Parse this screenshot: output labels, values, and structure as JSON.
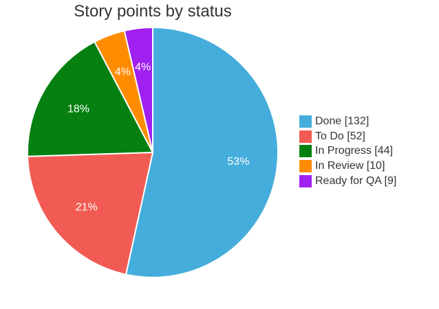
{
  "chart_data": {
    "type": "pie",
    "title": "Story points by status",
    "slices": [
      {
        "label": "Done",
        "value": 132,
        "percent_label": "53%",
        "color": "#45ADDB"
      },
      {
        "label": "To Do",
        "value": 52,
        "percent_label": "21%",
        "color": "#F15B53"
      },
      {
        "label": "In Progress",
        "value": 44,
        "percent_label": "18%",
        "color": "#078012"
      },
      {
        "label": "In Review",
        "value": 10,
        "percent_label": "4%",
        "color": "#FF8C00"
      },
      {
        "label": "Ready for QA",
        "value": 9,
        "percent_label": "4%",
        "color": "#A020F0"
      }
    ],
    "legend": {
      "placement": "right",
      "entries": [
        "Done [132]",
        "To Do [52]",
        "In Progress [44]",
        "In Review [10]",
        "Ready for QA [9]"
      ]
    },
    "start_angle": "12 o'clock",
    "direction": "clockwise"
  }
}
